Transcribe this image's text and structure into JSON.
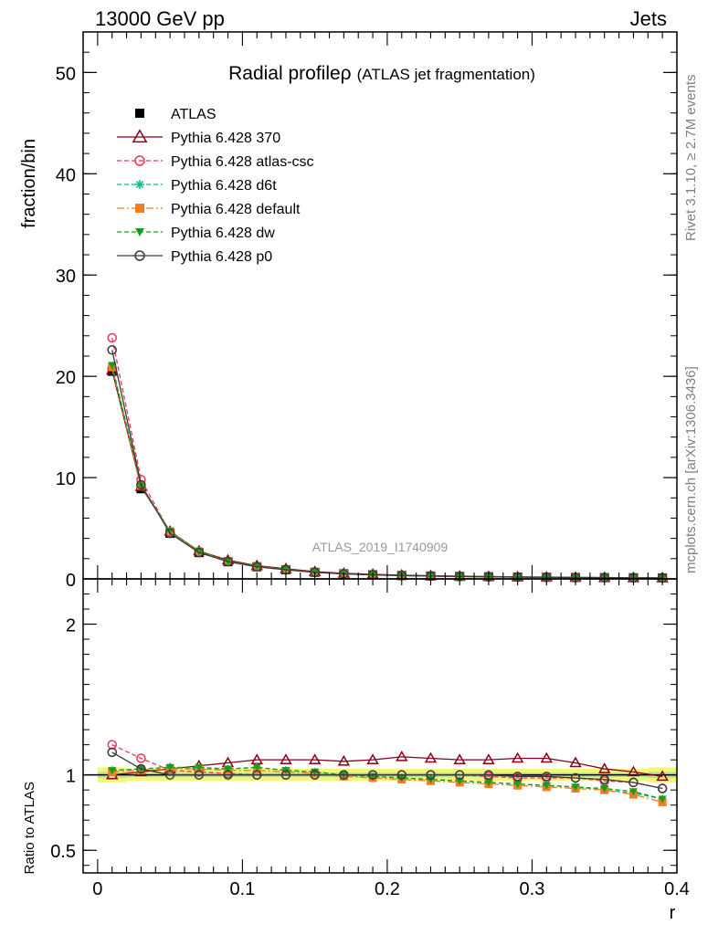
{
  "header": {
    "energy": "13000 GeV pp",
    "category": "Jets"
  },
  "side_labels": {
    "rivet": "Rivet 3.1.10, ≥ 2.7M events",
    "mcplots": "mcplots.cern.ch [arXiv:1306.3436]"
  },
  "chart_data": [
    {
      "type": "line",
      "title": "Radial profile",
      "title_symbol": "ρ",
      "subtitle": "(ATLAS jet fragmentation)",
      "ylabel": "fraction/bin",
      "xlabel": "",
      "watermark": "ATLAS_2019_I1740909",
      "xlim": [
        -0.01,
        0.4
      ],
      "ylim": [
        0,
        54
      ],
      "yticks": [
        0,
        10,
        20,
        30,
        40,
        50
      ],
      "ytick_labels": [
        "0",
        "10",
        "20",
        "30",
        "40",
        "50"
      ],
      "x": [
        0.01,
        0.03,
        0.05,
        0.07,
        0.09,
        0.11,
        0.13,
        0.15,
        0.17,
        0.19,
        0.21,
        0.23,
        0.25,
        0.27,
        0.29,
        0.31,
        0.33,
        0.35,
        0.37,
        0.39
      ],
      "legend_position": "top-left",
      "series": [
        {
          "name": "ATLAS",
          "color": "#000000",
          "marker": "square-filled",
          "line": "none",
          "values": [
            20.5,
            8.9,
            4.5,
            2.6,
            1.7,
            1.2,
            0.9,
            0.65,
            0.5,
            0.4,
            0.33,
            0.28,
            0.24,
            0.21,
            0.18,
            0.16,
            0.14,
            0.12,
            0.11,
            0.1
          ]
        },
        {
          "name": "Pythia 6.428 370",
          "color": "#8b0018",
          "marker": "triangle-open",
          "line": "solid",
          "values": [
            20.6,
            9.1,
            4.7,
            2.75,
            1.85,
            1.3,
            1.0,
            0.72,
            0.55,
            0.45,
            0.37,
            0.31,
            0.27,
            0.23,
            0.2,
            0.18,
            0.15,
            0.13,
            0.115,
            0.1
          ]
        },
        {
          "name": "Pythia 6.428 atlas-csc",
          "color": "#e8375a",
          "marker": "circle-open",
          "line": "dashed",
          "values": [
            23.8,
            9.8,
            4.6,
            2.7,
            1.72,
            1.2,
            0.9,
            0.65,
            0.5,
            0.4,
            0.33,
            0.28,
            0.24,
            0.21,
            0.18,
            0.16,
            0.14,
            0.12,
            0.11,
            0.1
          ]
        },
        {
          "name": "Pythia 6.428 d6t",
          "color": "#00c08a",
          "marker": "asterisk",
          "line": "dashed",
          "values": [
            21.0,
            9.2,
            4.7,
            2.7,
            1.75,
            1.25,
            0.93,
            0.66,
            0.5,
            0.4,
            0.33,
            0.28,
            0.24,
            0.21,
            0.18,
            0.16,
            0.14,
            0.12,
            0.11,
            0.1
          ]
        },
        {
          "name": "Pythia 6.428 default",
          "color": "#f07e26",
          "marker": "square-filled",
          "line": "dashdot",
          "values": [
            20.9,
            9.2,
            4.7,
            2.7,
            1.75,
            1.24,
            0.92,
            0.66,
            0.5,
            0.39,
            0.32,
            0.27,
            0.23,
            0.2,
            0.17,
            0.15,
            0.13,
            0.11,
            0.1,
            0.09
          ]
        },
        {
          "name": "Pythia 6.428 dw",
          "color": "#1a9e1a",
          "marker": "triangle-down-filled",
          "line": "dashed",
          "values": [
            21.1,
            9.2,
            4.7,
            2.72,
            1.76,
            1.25,
            0.93,
            0.66,
            0.5,
            0.4,
            0.33,
            0.28,
            0.23,
            0.2,
            0.17,
            0.15,
            0.13,
            0.11,
            0.1,
            0.09
          ]
        },
        {
          "name": "Pythia 6.428 p0",
          "color": "#3a3a3a",
          "marker": "circle-open",
          "line": "solid",
          "values": [
            22.6,
            9.3,
            4.5,
            2.6,
            1.7,
            1.2,
            0.9,
            0.65,
            0.5,
            0.4,
            0.33,
            0.28,
            0.24,
            0.21,
            0.18,
            0.16,
            0.14,
            0.12,
            0.1,
            0.09
          ]
        }
      ]
    },
    {
      "type": "line",
      "ylabel": "Ratio to ATLAS",
      "xlabel": "r",
      "xlim": [
        -0.01,
        0.4
      ],
      "ylim": [
        0.35,
        2.3
      ],
      "yticks": [
        0.5,
        1,
        2
      ],
      "ytick_labels": [
        "0.5",
        "1",
        "2"
      ],
      "xticks": [
        0,
        0.1,
        0.2,
        0.3,
        0.4
      ],
      "xtick_labels": [
        "0",
        "0.1",
        "0.2",
        "0.3",
        "0.4"
      ],
      "x": [
        0.01,
        0.03,
        0.05,
        0.07,
        0.09,
        0.11,
        0.13,
        0.15,
        0.17,
        0.19,
        0.21,
        0.23,
        0.25,
        0.27,
        0.29,
        0.31,
        0.33,
        0.35,
        0.37,
        0.39
      ],
      "uncertainty_band": {
        "outer_color": "#f5f57a",
        "inner_color": "#b9e68a",
        "outer_lo": [
          0.95,
          0.96,
          0.96,
          0.96,
          0.96,
          0.96,
          0.96,
          0.96,
          0.96,
          0.96,
          0.96,
          0.96,
          0.96,
          0.96,
          0.96,
          0.96,
          0.96,
          0.96,
          0.96,
          0.95
        ],
        "outer_hi": [
          1.05,
          1.04,
          1.04,
          1.04,
          1.04,
          1.04,
          1.04,
          1.04,
          1.04,
          1.04,
          1.04,
          1.04,
          1.04,
          1.04,
          1.04,
          1.04,
          1.04,
          1.04,
          1.04,
          1.05
        ],
        "inner_lo": [
          0.98,
          0.985,
          0.985,
          0.985,
          0.985,
          0.985,
          0.985,
          0.985,
          0.985,
          0.985,
          0.985,
          0.985,
          0.985,
          0.985,
          0.985,
          0.985,
          0.985,
          0.985,
          0.985,
          0.98
        ],
        "inner_hi": [
          1.02,
          1.015,
          1.015,
          1.015,
          1.015,
          1.015,
          1.015,
          1.015,
          1.015,
          1.015,
          1.015,
          1.015,
          1.015,
          1.015,
          1.015,
          1.015,
          1.015,
          1.015,
          1.015,
          1.02
        ]
      },
      "series": [
        {
          "name": "Pythia 6.428 370",
          "color": "#8b0018",
          "marker": "triangle-open",
          "line": "solid",
          "values": [
            1.0,
            1.02,
            1.04,
            1.06,
            1.08,
            1.1,
            1.1,
            1.1,
            1.09,
            1.1,
            1.12,
            1.11,
            1.1,
            1.1,
            1.11,
            1.11,
            1.08,
            1.04,
            1.02,
            0.99
          ]
        },
        {
          "name": "Pythia 6.428 atlas-csc",
          "color": "#e8375a",
          "marker": "circle-open",
          "line": "dashed",
          "values": [
            1.2,
            1.11,
            1.03,
            1.02,
            1.01,
            1.0,
            1.0,
            1.0,
            1.0,
            1.0,
            1.0,
            1.0,
            1.0,
            0.99,
            0.98,
            0.98,
            0.98,
            0.96,
            0.95,
            0.91
          ]
        },
        {
          "name": "Pythia 6.428 d6t",
          "color": "#00c08a",
          "marker": "asterisk",
          "line": "dashed",
          "values": [
            1.03,
            1.04,
            1.05,
            1.04,
            1.04,
            1.05,
            1.03,
            1.02,
            1.0,
            0.99,
            0.98,
            0.97,
            0.96,
            0.95,
            0.94,
            0.93,
            0.92,
            0.9,
            0.88,
            0.84
          ]
        },
        {
          "name": "Pythia 6.428 default",
          "color": "#f07e26",
          "marker": "square-filled",
          "line": "dashdot",
          "values": [
            1.02,
            1.03,
            1.04,
            1.04,
            1.03,
            1.03,
            1.02,
            1.01,
            0.99,
            0.98,
            0.97,
            0.96,
            0.95,
            0.94,
            0.93,
            0.92,
            0.91,
            0.9,
            0.87,
            0.82
          ]
        },
        {
          "name": "Pythia 6.428 dw",
          "color": "#1a9e1a",
          "marker": "triangle-down-filled",
          "line": "dashed",
          "values": [
            1.03,
            1.04,
            1.05,
            1.05,
            1.04,
            1.05,
            1.03,
            1.02,
            1.0,
            0.99,
            0.98,
            0.97,
            0.96,
            0.95,
            0.94,
            0.93,
            0.92,
            0.91,
            0.89,
            0.84
          ]
        },
        {
          "name": "Pythia 6.428 p0",
          "color": "#3a3a3a",
          "marker": "circle-open",
          "line": "solid",
          "values": [
            1.15,
            1.04,
            1.0,
            1.0,
            1.0,
            1.0,
            1.0,
            1.0,
            1.0,
            1.0,
            1.0,
            1.0,
            1.0,
            1.0,
            0.99,
            0.99,
            0.98,
            0.97,
            0.95,
            0.91
          ]
        }
      ]
    }
  ]
}
